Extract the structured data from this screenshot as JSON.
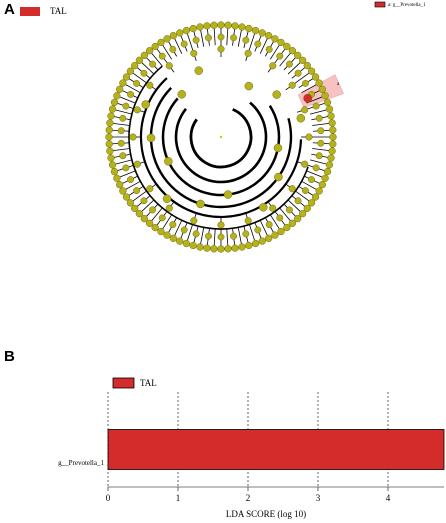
{
  "panel_labels": [
    "A",
    "B"
  ],
  "cladogram": {
    "legend": "TAL",
    "color": "#d42b2b",
    "key": "a: g__Prevotella_1",
    "node_label": "a"
  },
  "chart_data": {
    "type": "barh",
    "categories": [
      "g__Prevotella_1"
    ],
    "series": [
      {
        "name": "TAL",
        "color": "#d42b2b",
        "values": [
          4.8
        ]
      }
    ],
    "xlim": [
      0,
      4.8
    ],
    "xticks": [
      0,
      1,
      2,
      3,
      4
    ],
    "xlabel": "LDA SCORE (log 10)",
    "grid": true
  }
}
